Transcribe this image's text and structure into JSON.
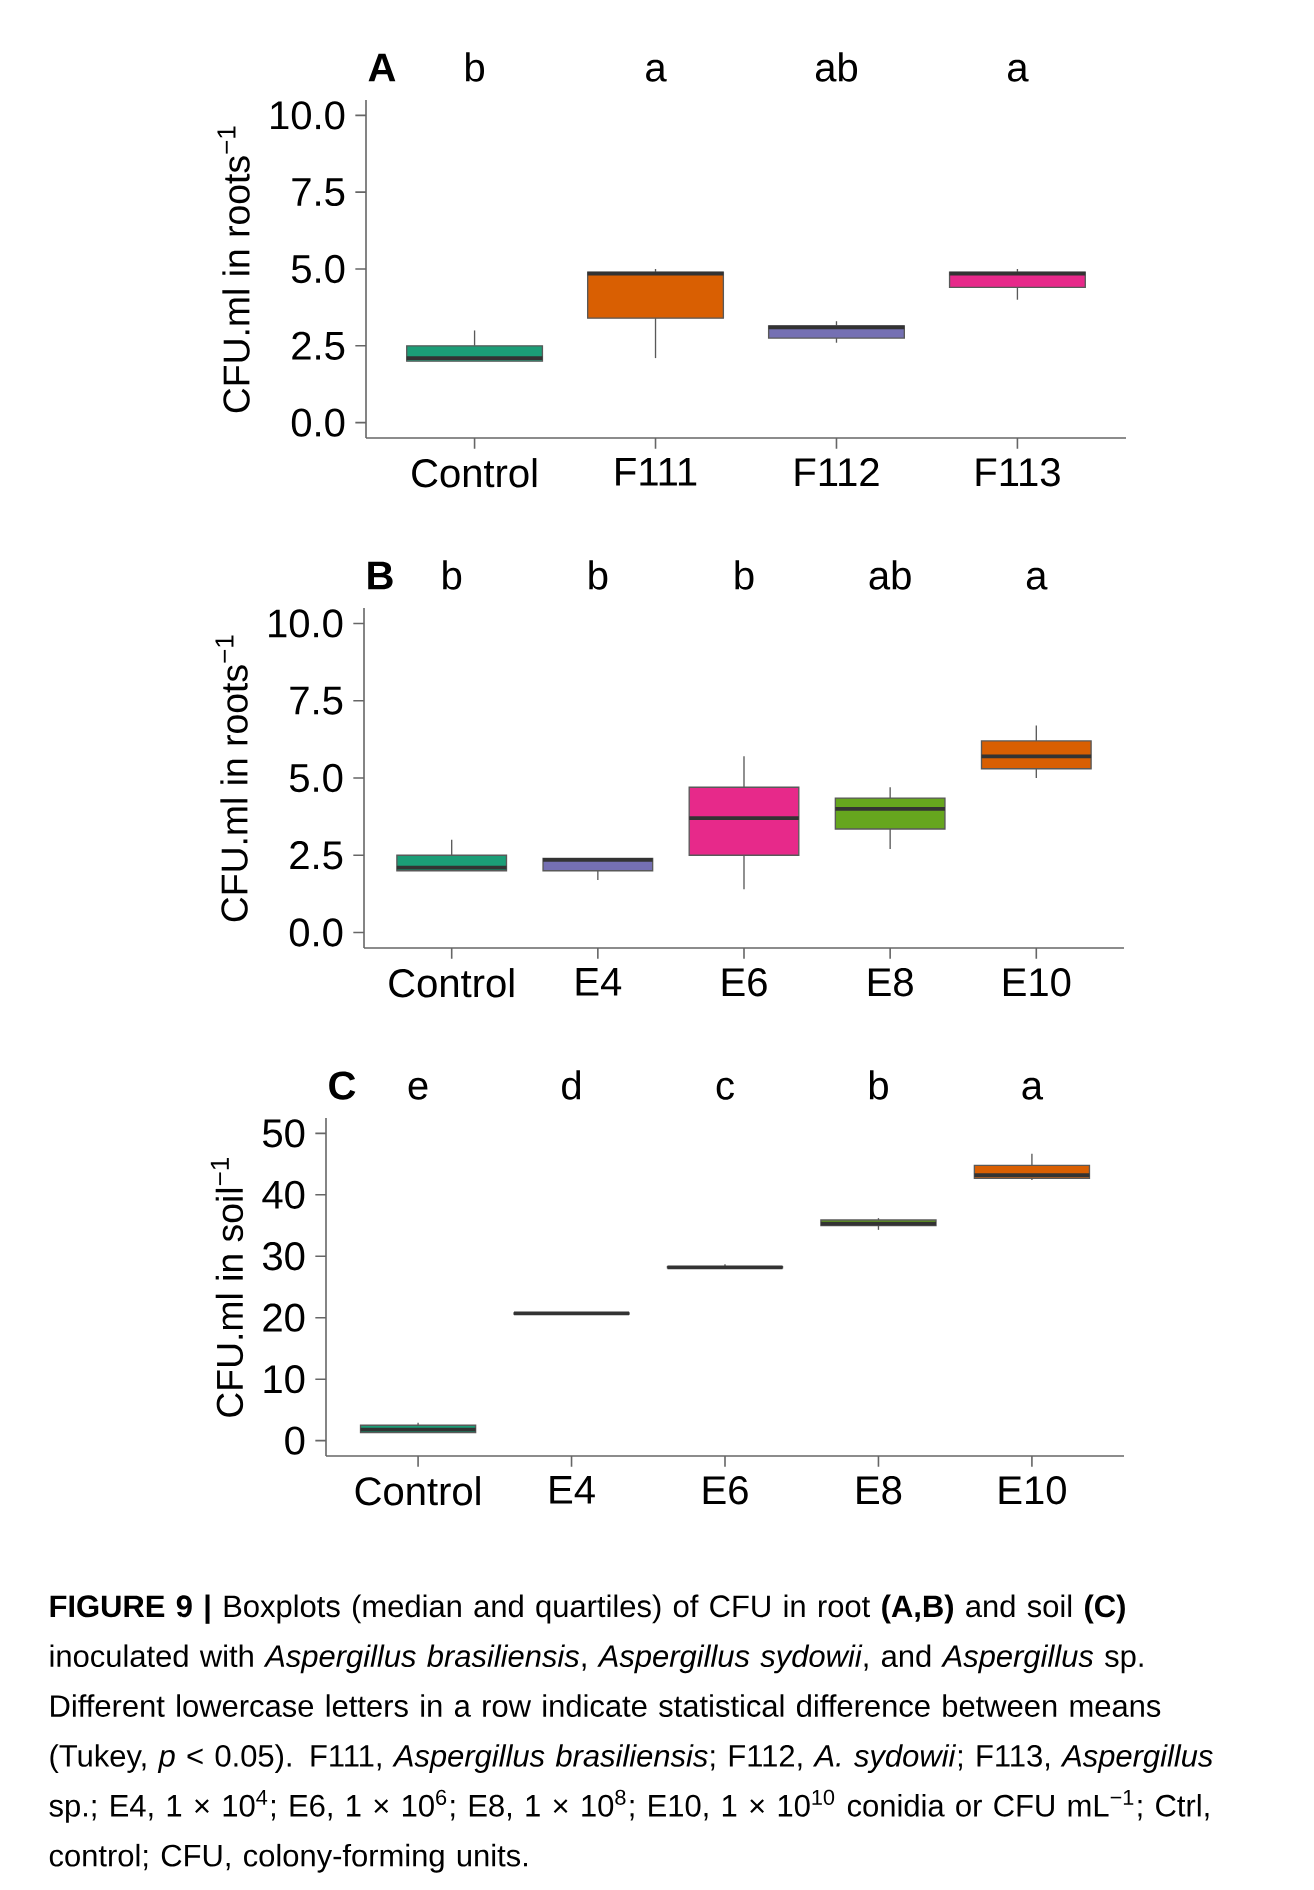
{
  "chart_data": [
    {
      "type": "box",
      "title": "A",
      "ylabel": "CFU.ml in roots$^{−1}$",
      "categories": [
        "Control",
        "F111",
        "F112",
        "F113"
      ],
      "boxes": [
        {
          "low": 2.0,
          "q1": 2.0,
          "median": 2.1,
          "q3": 2.5,
          "high": 3.0
        },
        {
          "low": 2.1,
          "q1": 3.4,
          "median": 4.85,
          "q3": 4.9,
          "high": 5.0
        },
        {
          "low": 2.6,
          "q1": 2.75,
          "median": 3.1,
          "q3": 3.15,
          "high": 3.3
        },
        {
          "low": 4.0,
          "q1": 4.4,
          "median": 4.85,
          "q3": 4.9,
          "high": 5.0
        }
      ],
      "colors": [
        "#1b9e77",
        "#d95f02",
        "#7570b3",
        "#e7298a"
      ],
      "ylim": [
        -0.5,
        10.5
      ],
      "yticks": [
        {
          "value": 0,
          "label": "0.0"
        },
        2.5,
        {
          "value": 5,
          "label": "5.0"
        },
        7.5,
        {
          "value": 10,
          "label": "10.0"
        }
      ],
      "annotations": [
        "b",
        "a",
        "ab",
        "a"
      ]
    },
    {
      "type": "box",
      "title": "B",
      "ylabel": "CFU.ml in roots$^{−1}$",
      "categories": [
        "Control",
        "E4",
        "E6",
        "E8",
        "E10"
      ],
      "boxes": [
        {
          "low": 2.0,
          "q1": 2.0,
          "median": 2.1,
          "q3": 2.5,
          "high": 3.0
        },
        {
          "low": 1.7,
          "q1": 2.0,
          "median": 2.35,
          "q3": 2.4,
          "high": 2.4
        },
        {
          "low": 1.4,
          "q1": 2.5,
          "median": 3.7,
          "q3": 4.7,
          "high": 5.7
        },
        {
          "low": 2.7,
          "q1": 3.35,
          "median": 4.0,
          "q3": 4.35,
          "high": 4.7
        },
        {
          "low": 5.0,
          "q1": 5.3,
          "median": 5.7,
          "q3": 6.2,
          "high": 6.7
        }
      ],
      "colors": [
        "#1b9e77",
        "#7570b3",
        "#e7298a",
        "#66a61e",
        "#d95f02"
      ],
      "ylim": [
        -0.5,
        10.5
      ],
      "yticks": [
        {
          "value": 0,
          "label": "0.0"
        },
        2.5,
        {
          "value": 5,
          "label": "5.0"
        },
        7.5,
        {
          "value": 10,
          "label": "10.0"
        }
      ],
      "annotations": [
        "b",
        "b",
        "b",
        "ab",
        "a"
      ]
    },
    {
      "type": "box",
      "title": "C",
      "ylabel": "CFU.ml in soil$^{−1}$",
      "categories": [
        "Control",
        "E4",
        "E6",
        "E8",
        "E10"
      ],
      "boxes": [
        {
          "low": 1.3,
          "q1": 1.3,
          "median": 1.8,
          "q3": 2.5,
          "high": 2.9
        },
        {
          "low": 20.6,
          "q1": 20.6,
          "median": 20.7,
          "q3": 20.8,
          "high": 20.8
        },
        {
          "low": 28.0,
          "q1": 28.1,
          "median": 28.2,
          "q3": 28.3,
          "high": 28.7
        },
        {
          "low": 34.3,
          "q1": 35.0,
          "median": 35.3,
          "q3": 35.9,
          "high": 36.2
        },
        {
          "low": 42.4,
          "q1": 42.7,
          "median": 43.2,
          "q3": 44.8,
          "high": 46.7
        }
      ],
      "colors": [
        "#1b9e77",
        "#7570b3",
        "#e7298a",
        "#66a61e",
        "#d95f02"
      ],
      "ylim": [
        -2.5,
        52.5
      ],
      "yticks": [
        0,
        10,
        20,
        30,
        40,
        50
      ],
      "annotations": [
        "e",
        "d",
        "c",
        "b",
        "a",
        "**FIGURE 9 |** Boxplots (median and quartiles) of CFU in root **(A,B)** and soil **(C)** inoculated with *Aspergillus brasiliensis*, *Aspergillus sydowii*, and *Aspergillus* sp. Different lowercase letters in a row indicate statistical difference between means (Tukey, *p* < 0.05). F111, *Aspergillus brasiliensis*; F112, *A. sydowii*; F113, *Aspergillus* sp.; E4, 1 × 10$^{4}$; E6, 1 × 10$^{6}$; E8, 1 × 10$^{8}$; E10, 1 × 10$^{10}$ conidia or CFU mL$^{−1}$; Ctrl, control; CFU, colony-forming units."
      ]
    }
  ]
}
